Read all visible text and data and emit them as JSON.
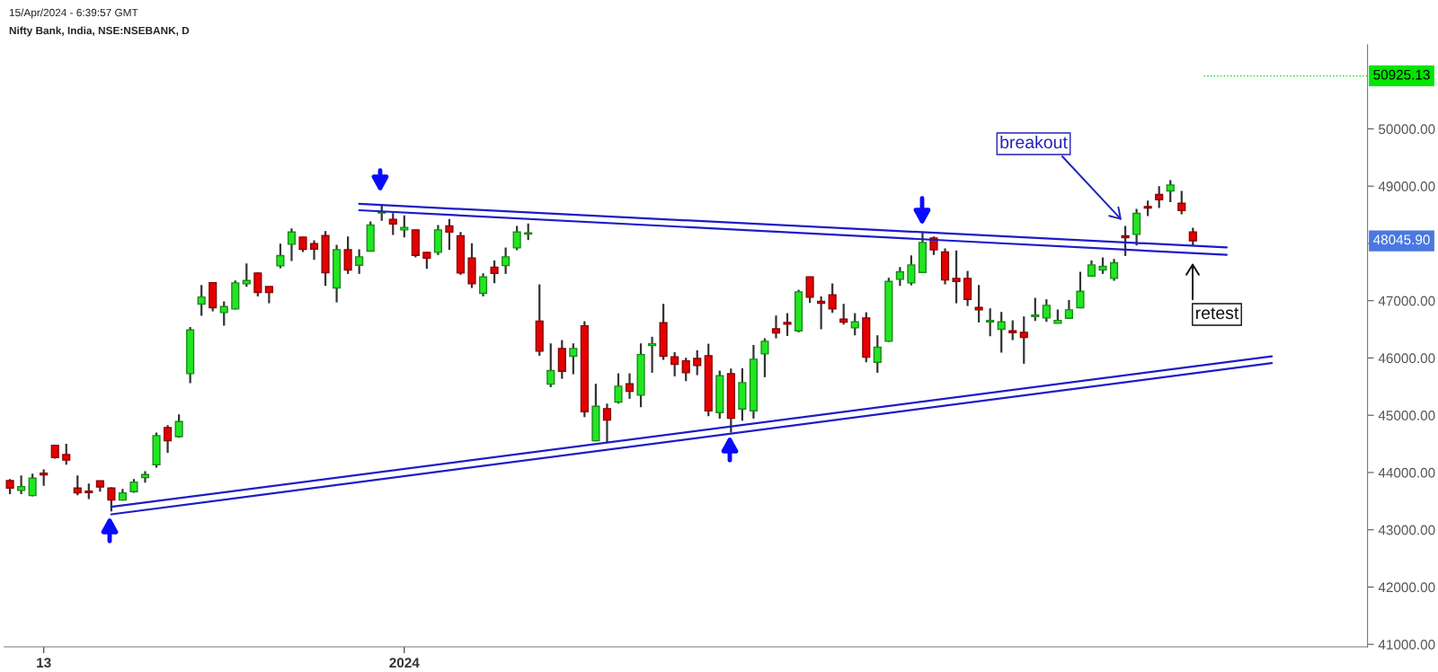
{
  "chart_data": {
    "type": "candlestick",
    "title": "Nifty Bank, India, NSE:NSEBANK, D",
    "annotations": [
      "15/Apr/2024 - 6:39:57 GMT",
      "breakout",
      "retest",
      "48045.90"
    ],
    "categories": [
      null,
      null,
      null,
      "13",
      null,
      null,
      null,
      null,
      null,
      null,
      null,
      null,
      null,
      null,
      null,
      null,
      null,
      null,
      null,
      null,
      null,
      null,
      null,
      null,
      null,
      null,
      null,
      null,
      null,
      null,
      null,
      null,
      null,
      null,
      null,
      "2024",
      null,
      null,
      null,
      null,
      null,
      null,
      null,
      null,
      null,
      null,
      null,
      null,
      null,
      null,
      null,
      null,
      null,
      null,
      null,
      null,
      null,
      null,
      null,
      null,
      null,
      null,
      null,
      null,
      null,
      null,
      null,
      null,
      null,
      null,
      null,
      null,
      null,
      null,
      null,
      null,
      null,
      null,
      null,
      null,
      null,
      null,
      null,
      null,
      null,
      null,
      null,
      null,
      null,
      null,
      null,
      null,
      null,
      null,
      null,
      null,
      null,
      null,
      null,
      null,
      null,
      null,
      null,
      null,
      null,
      null,
      null,
      null,
      null,
      null,
      null,
      null,
      null,
      null,
      null,
      null,
      null,
      null,
      null,
      null,
      null
    ],
    "ohlc": [
      [
        43859,
        43885,
        43624,
        43729
      ],
      [
        43687,
        43948,
        43624,
        43755
      ],
      [
        43598,
        43980,
        43582,
        43901
      ],
      [
        43990,
        44053,
        43770,
        43959
      ],
      [
        44476,
        44480,
        44241,
        44262
      ],
      [
        44314,
        44503,
        44137,
        44220
      ],
      [
        43729,
        43948,
        43603,
        43645
      ],
      [
        43676,
        43807,
        43535,
        43650
      ],
      [
        43854,
        43860,
        43666,
        43749
      ],
      [
        43729,
        43739,
        43321,
        43519
      ],
      [
        43519,
        43713,
        43509,
        43645
      ],
      [
        43666,
        43885,
        43645,
        43833
      ],
      [
        43912,
        44022,
        43823,
        43964
      ],
      [
        44137,
        44696,
        44084,
        44644
      ],
      [
        44785,
        44827,
        44346,
        44555
      ],
      [
        44628,
        45015,
        44607,
        44890
      ],
      [
        45727,
        46542,
        45559,
        46490
      ],
      [
        46940,
        47274,
        46736,
        47065
      ],
      [
        47316,
        47320,
        46814,
        46877
      ],
      [
        46793,
        46987,
        46563,
        46898
      ],
      [
        46856,
        47353,
        46846,
        47311
      ],
      [
        47295,
        47651,
        47243,
        47353
      ],
      [
        47484,
        47494,
        47076,
        47144
      ],
      [
        47248,
        47250,
        46955,
        47144
      ],
      [
        47609,
        47996,
        47567,
        47787
      ],
      [
        47986,
        48263,
        47693,
        48200
      ],
      [
        48111,
        48115,
        47850,
        47897
      ],
      [
        47996,
        48054,
        47714,
        47902
      ],
      [
        48137,
        48216,
        47259,
        47489
      ],
      [
        47222,
        47975,
        46971,
        47892
      ],
      [
        47892,
        48122,
        47468,
        47536
      ],
      [
        47620,
        47897,
        47468,
        47766
      ],
      [
        47866,
        48383,
        47860,
        48321
      ],
      [
        48530,
        48666,
        48394,
        48551
      ],
      [
        48420,
        48530,
        48148,
        48341
      ],
      [
        48237,
        48488,
        48106,
        48279
      ],
      [
        48237,
        48240,
        47756,
        47792
      ],
      [
        47845,
        47850,
        47557,
        47745
      ],
      [
        47845,
        48321,
        47798,
        48237
      ],
      [
        48305,
        48425,
        47887,
        48200
      ],
      [
        48132,
        48200,
        47452,
        47484
      ],
      [
        47745,
        48002,
        47222,
        47295
      ],
      [
        47128,
        47479,
        47076,
        47416
      ],
      [
        47583,
        47703,
        47306,
        47479
      ],
      [
        47614,
        47928,
        47468,
        47766
      ],
      [
        47923,
        48305,
        47881,
        48200
      ],
      [
        48164,
        48347,
        48059,
        48185
      ],
      [
        46642,
        47285,
        46040,
        46119
      ],
      [
        45543,
        46255,
        45491,
        45779
      ],
      [
        46166,
        46312,
        45637,
        45768
      ],
      [
        46030,
        46255,
        45716,
        46166
      ],
      [
        46563,
        46642,
        44968,
        45062
      ],
      [
        44555,
        45549,
        44545,
        45156
      ],
      [
        45115,
        45203,
        44513,
        44916
      ],
      [
        45230,
        45732,
        45203,
        45507
      ],
      [
        45549,
        45732,
        45287,
        45418
      ],
      [
        45350,
        46255,
        45141,
        46061
      ],
      [
        46218,
        46370,
        45742,
        46249
      ],
      [
        46616,
        46945,
        45967,
        46030
      ],
      [
        46019,
        46103,
        45679,
        45889
      ],
      [
        45951,
        46004,
        45596,
        45742
      ],
      [
        45993,
        46134,
        45700,
        45868
      ],
      [
        46040,
        46249,
        44984,
        45078
      ],
      [
        45047,
        45779,
        44942,
        45690
      ],
      [
        45727,
        45815,
        44696,
        44947
      ],
      [
        45109,
        45820,
        44905,
        45570
      ],
      [
        45078,
        46228,
        44942,
        45978
      ],
      [
        46072,
        46344,
        45664,
        46291
      ],
      [
        46511,
        46741,
        46344,
        46438
      ],
      [
        46621,
        46783,
        46385,
        46589
      ],
      [
        46474,
        47191,
        46448,
        47154
      ],
      [
        47416,
        47420,
        46961,
        47060
      ],
      [
        46987,
        47076,
        46501,
        46955
      ],
      [
        47102,
        47301,
        46788,
        46856
      ],
      [
        46678,
        46945,
        46584,
        46626
      ],
      [
        46527,
        46783,
        46396,
        46631
      ],
      [
        46699,
        46799,
        45925,
        46014
      ],
      [
        45925,
        46396,
        45742,
        46187
      ],
      [
        46291,
        47400,
        46281,
        47337
      ],
      [
        47374,
        47588,
        47259,
        47505
      ],
      [
        47311,
        47792,
        47269,
        47625
      ],
      [
        47494,
        48200,
        47484,
        48017
      ],
      [
        48096,
        48122,
        47798,
        47887
      ],
      [
        47850,
        47913,
        47285,
        47363
      ],
      [
        47390,
        47876,
        46955,
        47337
      ],
      [
        47390,
        47520,
        46908,
        47024
      ],
      [
        46882,
        47274,
        46621,
        46840
      ],
      [
        46631,
        46867,
        46380,
        46657
      ],
      [
        46501,
        46804,
        46093,
        46631
      ],
      [
        46474,
        46657,
        46312,
        46443
      ],
      [
        46448,
        46725,
        45899,
        46359
      ],
      [
        46725,
        47050,
        46647,
        46751
      ],
      [
        46699,
        47024,
        46631,
        46919
      ],
      [
        46605,
        46846,
        46605,
        46657
      ],
      [
        46694,
        47013,
        46684,
        46840
      ],
      [
        46877,
        47505,
        46867,
        47165
      ],
      [
        47431,
        47703,
        47421,
        47625
      ],
      [
        47536,
        47756,
        47468,
        47599
      ],
      [
        47390,
        47729,
        47348,
        47662
      ],
      [
        48132,
        48305,
        47782,
        48101
      ],
      [
        48158,
        48603,
        47965,
        48524
      ],
      [
        48645,
        48749,
        48477,
        48619
      ],
      [
        48854,
        49000,
        48619,
        48765
      ],
      [
        48917,
        49105,
        48723,
        49021
      ],
      [
        48701,
        48916,
        48509,
        48574
      ],
      [
        48202,
        48274,
        47952,
        48045.9
      ],
      null,
      null,
      null,
      null,
      null,
      null,
      null,
      null,
      null,
      null,
      null,
      null,
      null,
      null,
      null
    ],
    "series": [
      {
        "type": "line",
        "color": "#1c1cc8",
        "values": [
          null,
          null,
          null,
          null,
          null,
          null,
          null,
          null,
          null,
          null,
          null,
          null,
          null,
          null,
          null,
          null,
          null,
          null,
          null,
          null,
          null,
          null,
          null,
          null,
          null,
          null,
          null,
          null,
          null,
          null,
          null,
          48690,
          null,
          null,
          null,
          null,
          null,
          null,
          null,
          null,
          null,
          null,
          null,
          null,
          null,
          null,
          null,
          null,
          null,
          null,
          null,
          null,
          null,
          null,
          null,
          null,
          null,
          null,
          null,
          null,
          null,
          null,
          null,
          null,
          null,
          null,
          null,
          null,
          null,
          null,
          null,
          null,
          null,
          null,
          null,
          null,
          null,
          null,
          null,
          null,
          null,
          null,
          null,
          null,
          null,
          null,
          null,
          null,
          null,
          null,
          null,
          null,
          null,
          null,
          null,
          null,
          null,
          null,
          null,
          null,
          null,
          null,
          null,
          null,
          null,
          null,
          null,
          null,
          47930,
          null,
          null,
          null,
          null,
          null,
          null,
          null,
          null,
          null,
          null,
          null,
          null
        ]
      },
      {
        "type": "line",
        "color": "#1c1cc8",
        "values": [
          null,
          null,
          null,
          null,
          null,
          null,
          null,
          null,
          null,
          null,
          null,
          null,
          null,
          null,
          null,
          null,
          null,
          null,
          null,
          null,
          null,
          null,
          null,
          null,
          null,
          null,
          null,
          null,
          null,
          null,
          null,
          48580,
          null,
          null,
          null,
          null,
          null,
          null,
          null,
          null,
          null,
          null,
          null,
          null,
          null,
          null,
          null,
          null,
          null,
          null,
          null,
          null,
          null,
          null,
          null,
          null,
          null,
          null,
          null,
          null,
          null,
          null,
          null,
          null,
          null,
          null,
          null,
          null,
          null,
          null,
          null,
          null,
          null,
          null,
          null,
          null,
          null,
          null,
          null,
          null,
          null,
          null,
          null,
          null,
          null,
          null,
          null,
          null,
          null,
          null,
          null,
          null,
          null,
          null,
          null,
          null,
          null,
          null,
          null,
          null,
          null,
          null,
          null,
          null,
          null,
          null,
          null,
          null,
          47800,
          null,
          null,
          null,
          null,
          null,
          null,
          null,
          null,
          null,
          null,
          null,
          null
        ]
      },
      {
        "type": "line",
        "color": "#1c1cc8",
        "values": [
          null,
          null,
          null,
          null,
          null,
          null,
          null,
          null,
          null,
          43400,
          null,
          null,
          null,
          null,
          null,
          null,
          null,
          null,
          null,
          null,
          null,
          null,
          null,
          null,
          null,
          null,
          null,
          null,
          null,
          null,
          null,
          null,
          null,
          null,
          null,
          null,
          null,
          null,
          null,
          null,
          null,
          null,
          null,
          null,
          null,
          null,
          null,
          null,
          null,
          null,
          null,
          null,
          null,
          null,
          null,
          null,
          null,
          null,
          null,
          null,
          null,
          null,
          null,
          null,
          null,
          null,
          null,
          null,
          null,
          null,
          null,
          null,
          null,
          null,
          null,
          null,
          null,
          null,
          null,
          null,
          null,
          null,
          null,
          null,
          null,
          null,
          null,
          null,
          null,
          null,
          null,
          null,
          null,
          null,
          null,
          null,
          null,
          null,
          null,
          null,
          null,
          null,
          null,
          null,
          null,
          null,
          null,
          null,
          null,
          null,
          null,
          null,
          46030,
          null,
          null,
          null,
          null,
          null,
          null,
          null,
          null
        ]
      },
      {
        "type": "line",
        "color": "#1c1cc8",
        "values": [
          null,
          null,
          null,
          null,
          null,
          null,
          null,
          null,
          null,
          43270,
          null,
          null,
          null,
          null,
          null,
          null,
          null,
          null,
          null,
          null,
          null,
          null,
          null,
          null,
          null,
          null,
          null,
          null,
          null,
          null,
          null,
          null,
          null,
          null,
          null,
          null,
          null,
          null,
          null,
          null,
          null,
          null,
          null,
          null,
          null,
          null,
          null,
          null,
          null,
          null,
          null,
          null,
          null,
          null,
          null,
          null,
          null,
          null,
          null,
          null,
          null,
          null,
          null,
          null,
          null,
          null,
          null,
          null,
          null,
          null,
          null,
          null,
          null,
          null,
          null,
          null,
          null,
          null,
          null,
          null,
          null,
          null,
          null,
          null,
          null,
          null,
          null,
          null,
          null,
          null,
          null,
          null,
          null,
          null,
          null,
          null,
          null,
          null,
          null,
          null,
          null,
          null,
          null,
          null,
          null,
          null,
          null,
          null,
          null,
          null,
          null,
          null,
          45910,
          null,
          null,
          null,
          null,
          null,
          null,
          null,
          null
        ]
      }
    ],
    "ylim": [
      40956,
      51469
    ],
    "yticks": [
      {
        "value": 41000,
        "label": "41000.00"
      },
      {
        "value": 42000,
        "label": "42000.00"
      },
      {
        "value": 43000,
        "label": "43000.00"
      },
      {
        "value": 44000,
        "label": "44000.00"
      },
      {
        "value": 45000,
        "label": "45000.00"
      },
      {
        "value": 46000,
        "label": "46000.00"
      },
      {
        "value": 47000,
        "label": "47000.00"
      },
      {
        "value": 48000,
        "label": null
      },
      {
        "value": 49000,
        "label": "49000.00"
      },
      {
        "value": 50000,
        "label": "50000.00"
      }
    ],
    "ref_lines": [
      {
        "axis": "y",
        "value": 50925.13,
        "label": "50925.13",
        "color": "#00e600",
        "line_style": "dotted"
      }
    ],
    "grid": false,
    "legend": false
  }
}
